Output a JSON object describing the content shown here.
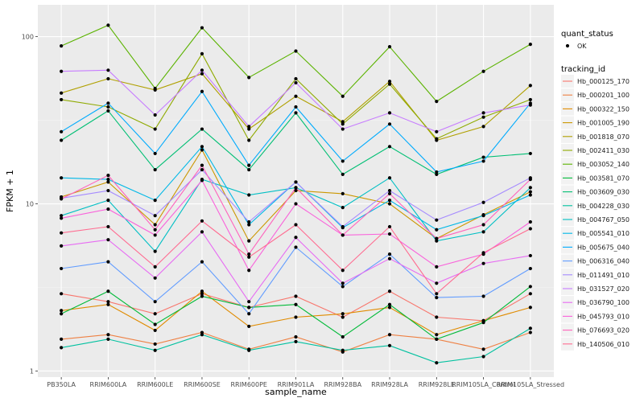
{
  "chart_data": {
    "type": "line",
    "xlabel": "sample_name",
    "ylabel": "FPKM + 1",
    "y_scale": "log10",
    "ylim": [
      0.92,
      155
    ],
    "yticks": [
      1,
      10,
      100
    ],
    "ytick_labels": [
      "1",
      "10",
      "100"
    ],
    "grid": true,
    "legend_position": "right",
    "categories": [
      "PB350LA",
      "RRIM600LA",
      "RRIM600LE",
      "RRIM600SE",
      "RRIM600PE",
      "RRIM901LA",
      "RRIM928BA",
      "RRIM928LA",
      "RRIM928LE",
      "RRIM105LA_Control",
      "RRIM105LA_Stressed"
    ],
    "shape_legend": {
      "title": "quant_status",
      "items": [
        "OK"
      ]
    },
    "legend_title": "tracking_id",
    "series": [
      {
        "name": "Hb_000125_170",
        "color": "#F8766D",
        "values": [
          2.9,
          2.6,
          2.2,
          2.9,
          2.4,
          2.8,
          2.1,
          3.0,
          2.1,
          2.0,
          2.9
        ]
      },
      {
        "name": "Hb_000201_100",
        "color": "#EE8043",
        "values": [
          1.55,
          1.65,
          1.45,
          1.7,
          1.35,
          1.6,
          1.3,
          1.65,
          1.55,
          1.35,
          1.7
        ]
      },
      {
        "name": "Hb_000322_150",
        "color": "#E08B00",
        "values": [
          2.3,
          2.5,
          1.75,
          3.0,
          1.85,
          2.1,
          2.2,
          2.4,
          1.65,
          2.0,
          2.4
        ]
      },
      {
        "name": "Hb_001005_190",
        "color": "#CB9700",
        "values": [
          11.0,
          13.5,
          7.5,
          21.0,
          6.0,
          12.0,
          11.5,
          10.0,
          6.2,
          8.6,
          11.8
        ]
      },
      {
        "name": "Hb_001818_070",
        "color": "#B0A000",
        "values": [
          46.0,
          56.0,
          48.0,
          60.0,
          28.0,
          44.0,
          31.0,
          54.0,
          24.0,
          29.0,
          51.0
        ]
      },
      {
        "name": "Hb_002411_030",
        "color": "#8FAA00",
        "values": [
          42.0,
          38.0,
          28.0,
          79.0,
          24.0,
          56.0,
          30.0,
          52.0,
          24.5,
          33.0,
          42.0
        ]
      },
      {
        "name": "Hb_003052_140",
        "color": "#5BB300",
        "values": [
          88.0,
          117.0,
          49.0,
          113.0,
          57.0,
          82.0,
          44.0,
          87.0,
          41.0,
          62.0,
          90.0
        ]
      },
      {
        "name": "Hb_003581_070",
        "color": "#00BA38",
        "values": [
          2.2,
          3.0,
          1.9,
          2.8,
          2.4,
          2.5,
          1.6,
          2.5,
          1.55,
          1.95,
          3.2
        ]
      },
      {
        "name": "Hb_003609_030",
        "color": "#00BF74",
        "values": [
          24.0,
          36.0,
          16.0,
          28.0,
          16.0,
          35.0,
          15.0,
          22.0,
          15.0,
          19.0,
          20.0
        ]
      },
      {
        "name": "Hb_004228_030",
        "color": "#00C19F",
        "values": [
          1.38,
          1.55,
          1.33,
          1.65,
          1.33,
          1.5,
          1.33,
          1.42,
          1.12,
          1.22,
          1.8
        ]
      },
      {
        "name": "Hb_004767_050",
        "color": "#00BFC4",
        "values": [
          8.5,
          10.5,
          5.2,
          14.0,
          11.3,
          12.5,
          9.5,
          14.3,
          6.0,
          6.8,
          12.5
        ]
      },
      {
        "name": "Hb_005541_010",
        "color": "#00B8E7",
        "values": [
          14.3,
          14.0,
          10.5,
          22.0,
          7.5,
          13.5,
          7.2,
          10.5,
          7.0,
          8.5,
          11.3
        ]
      },
      {
        "name": "Hb_005675_040",
        "color": "#00ABFD",
        "values": [
          27.0,
          40.0,
          20.0,
          47.0,
          17.0,
          38.0,
          18.0,
          30.0,
          15.5,
          18.0,
          40.0
        ]
      },
      {
        "name": "Hb_006316_040",
        "color": "#619CFF",
        "values": [
          4.1,
          4.5,
          2.6,
          4.5,
          2.2,
          5.5,
          3.2,
          5.0,
          2.75,
          2.8,
          4.1
        ]
      },
      {
        "name": "Hb_011491_010",
        "color": "#A58AFF",
        "values": [
          10.8,
          12.0,
          8.5,
          16.0,
          7.8,
          13.5,
          7.3,
          12.0,
          8.0,
          10.2,
          14.3
        ]
      },
      {
        "name": "Hb_031527_020",
        "color": "#C77CFF",
        "values": [
          62.0,
          63.0,
          34.0,
          63.0,
          29.0,
          53.0,
          28.0,
          35.0,
          27.0,
          35.0,
          39.0
        ]
      },
      {
        "name": "Hb_036790_100",
        "color": "#E76BF3",
        "values": [
          5.6,
          6.1,
          3.6,
          6.8,
          2.6,
          6.3,
          3.35,
          4.7,
          3.35,
          4.4,
          4.9
        ]
      },
      {
        "name": "Hb_045793_010",
        "color": "#FA62DB",
        "values": [
          8.2,
          9.3,
          6.5,
          13.8,
          4.0,
          10.0,
          6.5,
          6.6,
          4.2,
          5.0,
          7.8
        ]
      },
      {
        "name": "Hb_076693_020",
        "color": "#FF62BC",
        "values": [
          10.7,
          14.8,
          7.0,
          17.0,
          5.0,
          12.5,
          6.5,
          11.5,
          6.2,
          7.5,
          14.0
        ]
      },
      {
        "name": "Hb_140506_010",
        "color": "#FF6C91",
        "values": [
          6.7,
          7.3,
          4.2,
          7.9,
          4.8,
          7.5,
          4.0,
          7.3,
          2.9,
          5.1,
          7.1
        ]
      }
    ]
  }
}
